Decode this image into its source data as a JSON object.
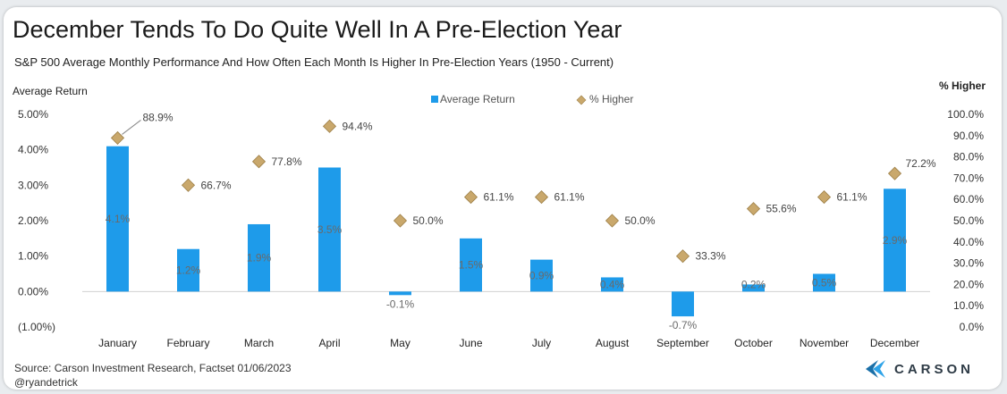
{
  "title": "December Tends To Do Quite Well In A Pre-Election Year",
  "subtitle": "S&P 500 Average Monthly Performance And How Often Each Month Is Higher In Pre-Election Years (1950 - Current)",
  "source": "Source: Carson Investment Research, Factset 01/06/2023",
  "handle": "@ryandetrick",
  "brand": "CARSON",
  "colors": {
    "bar": "#1e9bea",
    "marker": "#c9a86c",
    "marker_edge": "#9d7f47"
  },
  "chart_data": {
    "type": "bar",
    "categories": [
      "January",
      "February",
      "March",
      "April",
      "May",
      "June",
      "July",
      "August",
      "September",
      "October",
      "November",
      "December"
    ],
    "series": [
      {
        "name": "Average Return",
        "type": "bar",
        "axis": "left",
        "values": [
          4.1,
          1.2,
          1.9,
          3.5,
          -0.1,
          1.5,
          0.9,
          0.4,
          -0.7,
          0.2,
          0.5,
          2.9
        ],
        "labels": [
          "4.1%",
          "1.2%",
          "1.9%",
          "3.5%",
          "-0.1%",
          "1.5%",
          "0.9%",
          "0.4%",
          "-0.7%",
          "0.2%",
          "0.5%",
          "2.9%"
        ]
      },
      {
        "name": "% Higher",
        "type": "scatter",
        "marker": "diamond",
        "axis": "right",
        "values": [
          88.9,
          66.7,
          77.8,
          94.4,
          50.0,
          61.1,
          61.1,
          50.0,
          33.3,
          55.6,
          61.1,
          72.2
        ],
        "labels": [
          "88.9%",
          "66.7%",
          "77.8%",
          "94.4%",
          "50.0%",
          "61.1%",
          "61.1%",
          "50.0%",
          "33.3%",
          "55.6%",
          "61.1%",
          "72.2%"
        ]
      }
    ],
    "y_left": {
      "label": "Average Return",
      "lim": [
        -1,
        5
      ],
      "ticks": [
        5,
        4,
        3,
        2,
        1,
        0,
        -1
      ],
      "tick_labels": [
        "5.00%",
        "4.00%",
        "3.00%",
        "2.00%",
        "1.00%",
        "0.00%",
        "(1.00%)"
      ]
    },
    "y_right": {
      "label": "% Higher",
      "lim": [
        0,
        100
      ],
      "ticks": [
        100,
        90,
        80,
        70,
        60,
        50,
        40,
        30,
        20,
        10,
        0
      ],
      "tick_labels": [
        "100.0%",
        "90.0%",
        "80.0%",
        "70.0%",
        "60.0%",
        "50.0%",
        "40.0%",
        "30.0%",
        "20.0%",
        "10.0%",
        "0.0%"
      ]
    },
    "legend": {
      "position": "top-center",
      "entries": [
        "Average Return",
        "% Higher"
      ]
    },
    "grid": false
  }
}
